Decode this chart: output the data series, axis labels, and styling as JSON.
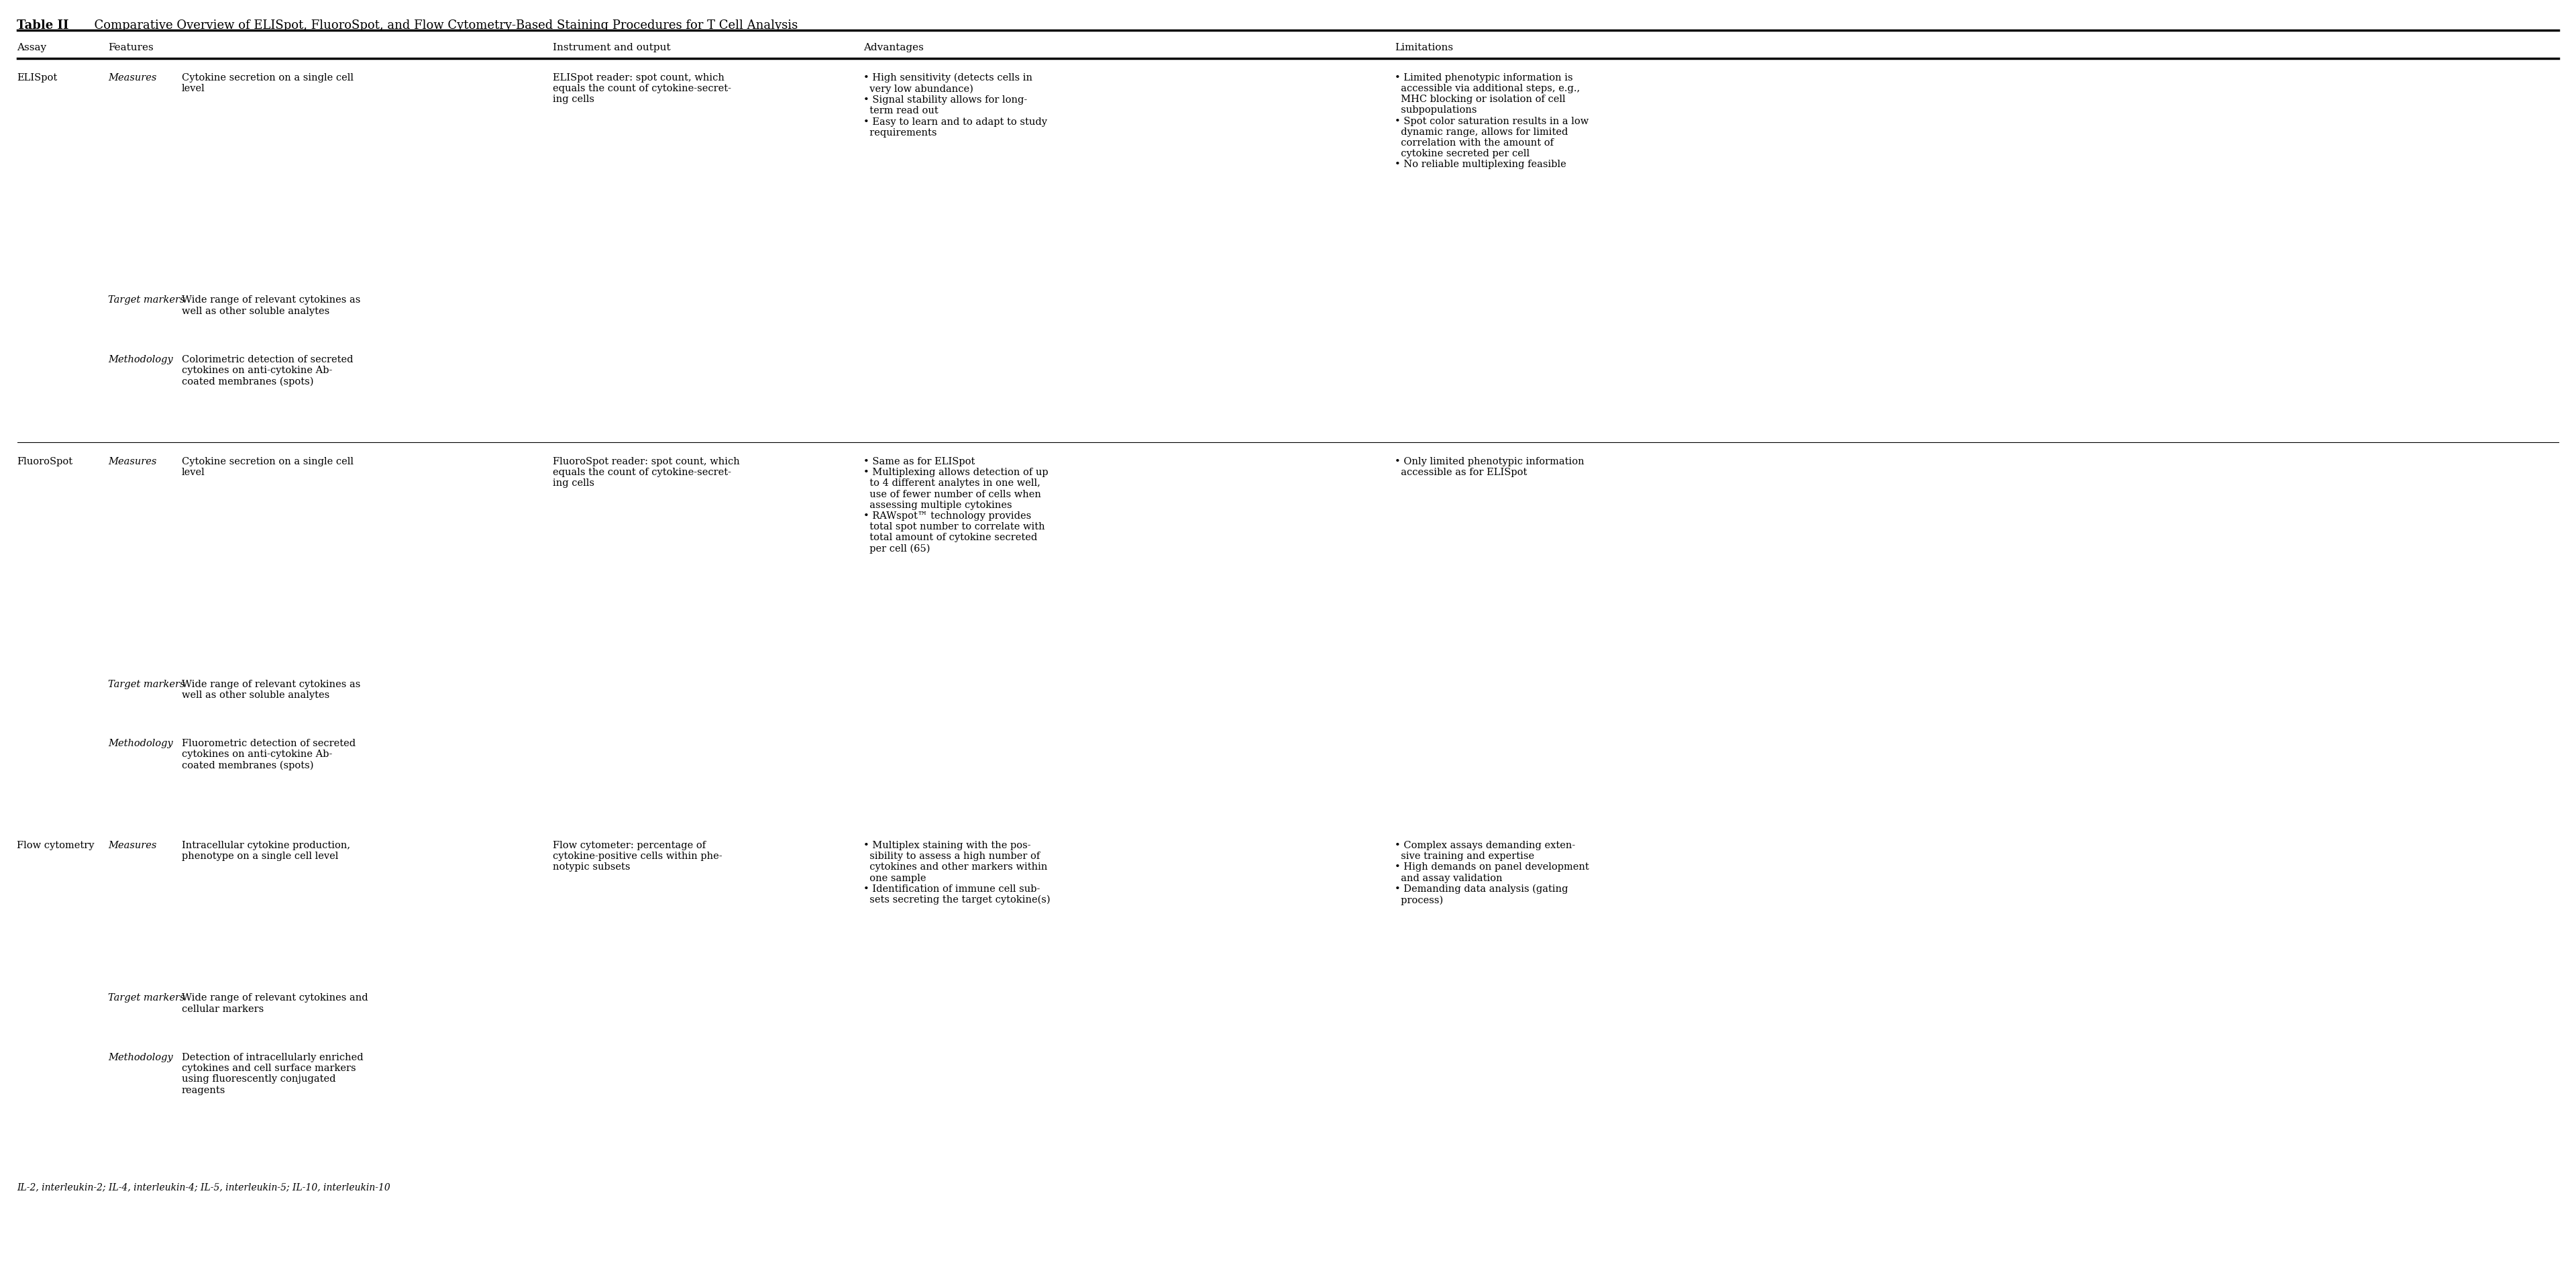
{
  "title_bold": "Table II",
  "title_rest": "  Comparative Overview of ELISpot, FluoroSpot, and Flow Cytometry-Based Staining Procedures for T Cell Analysis",
  "col_headers": [
    "Assay",
    "Features",
    "",
    "Instrument and output",
    "Advantages",
    "Limitations"
  ],
  "footer": "IL-2, interleukin-2; IL-4, interleukin-4; IL-5, interleukin-5; IL-10, interleukin-10",
  "rows": [
    {
      "assay": "ELISpot",
      "subrows": [
        {
          "feature_label": "Measures",
          "feature_text": "Cytokine secretion on a single cell\nlevel",
          "instrument": "ELISpot reader: spot count, which\nequals the count of cytokine-secret-\ning cells",
          "advantages": "• High sensitivity (detects cells in\n  very low abundance)\n• Signal stability allows for long-\n  term read out\n• Easy to learn and to adapt to study\n  requirements",
          "limitations": "• Limited phenotypic information is\n  accessible via additional steps, e.g.,\n  MHC blocking or isolation of cell\n  subpopulations\n• Spot color saturation results in a low\n  dynamic range, allows for limited\n  correlation with the amount of\n  cytokine secreted per cell\n• No reliable multiplexing feasible"
        },
        {
          "feature_label": "Target markers",
          "feature_text": "Wide range of relevant cytokines as\nwell as other soluble analytes",
          "instrument": "",
          "advantages": "",
          "limitations": ""
        },
        {
          "feature_label": "Methodology",
          "feature_text": "Colorimetric detection of secreted\ncytokines on anti-cytokine Ab-\ncoated membranes (spots)",
          "instrument": "",
          "advantages": "",
          "limitations": ""
        }
      ]
    },
    {
      "assay": "FluoroSpot",
      "subrows": [
        {
          "feature_label": "Measures",
          "feature_text": "Cytokine secretion on a single cell\nlevel",
          "instrument": "FluoroSpot reader: spot count, which\nequals the count of cytokine-secret-\ning cells",
          "advantages": "• Same as for ELISpot\n• Multiplexing allows detection of up\n  to 4 different analytes in one well,\n  use of fewer number of cells when\n  assessing multiple cytokines\n• RAWspot™ technology provides\n  total spot number to correlate with\n  total amount of cytokine secreted\n  per cell (65)",
          "limitations": "• Only limited phenotypic information\n  accessible as for ELISpot"
        },
        {
          "feature_label": "Target markers",
          "feature_text": "Wide range of relevant cytokines as\nwell as other soluble analytes",
          "instrument": "",
          "advantages": "",
          "limitations": ""
        },
        {
          "feature_label": "Methodology",
          "feature_text": "Fluorometric detection of secreted\ncytokines on anti-cytokine Ab-\ncoated membranes (spots)",
          "instrument": "",
          "advantages": "",
          "limitations": ""
        }
      ]
    },
    {
      "assay": "Flow cytometry",
      "subrows": [
        {
          "feature_label": "Measures",
          "feature_text": "Intracellular cytokine production,\nphenotype on a single cell level",
          "instrument": "Flow cytometer: percentage of\ncytokine-positive cells within phe-\nnotypic subsets",
          "advantages": "• Multiplex staining with the pos-\n  sibility to assess a high number of\n  cytokines and other markers within\n  one sample\n• Identification of immune cell sub-\n  sets secreting the target cytokine(s)",
          "limitations": "• Complex assays demanding exten-\n  sive training and expertise\n• High demands on panel development\n  and assay validation\n• Demanding data analysis (gating\n  process)"
        },
        {
          "feature_label": "Target markers",
          "feature_text": "Wide range of relevant cytokines and\ncellular markers",
          "instrument": "",
          "advantages": "",
          "limitations": ""
        },
        {
          "feature_label": "Methodology",
          "feature_text": "Detection of intracellularly enriched\ncytokines and cell surface markers\nusing fluorescently conjugated\nreagents",
          "instrument": "",
          "advantages": "",
          "limitations": ""
        }
      ]
    }
  ]
}
